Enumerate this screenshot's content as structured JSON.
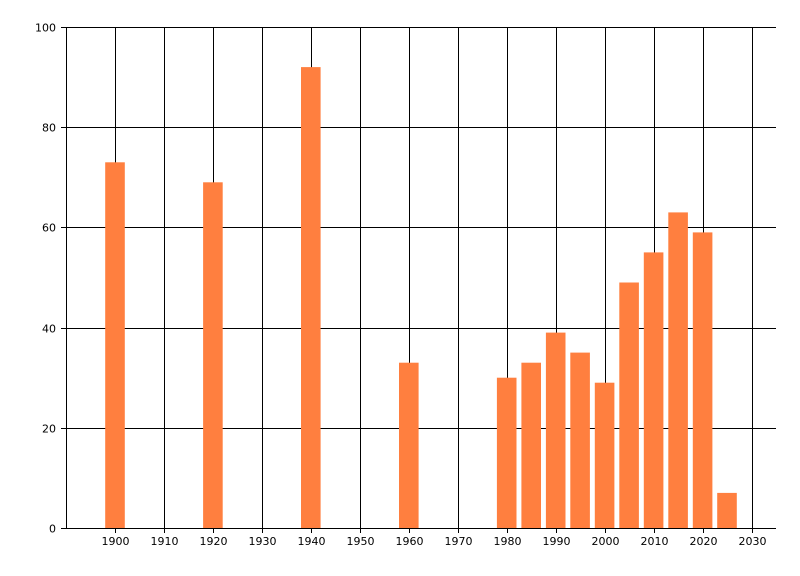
{
  "chart_data": {
    "type": "bar",
    "x": [
      1900,
      1920,
      1940,
      1960,
      1980,
      1985,
      1990,
      1995,
      2000,
      2005,
      2010,
      2015,
      2020,
      2025
    ],
    "values": [
      73,
      69,
      92,
      33,
      30,
      33,
      39,
      35,
      29,
      49,
      55,
      63,
      59,
      7
    ],
    "xlim": [
      1890,
      2035
    ],
    "ylim": [
      0,
      100
    ],
    "xticks": [
      1900,
      1910,
      1920,
      1930,
      1940,
      1950,
      1960,
      1970,
      1980,
      1990,
      2000,
      2010,
      2020,
      2030
    ],
    "yticks": [
      0,
      20,
      40,
      60,
      80,
      100
    ],
    "grid": true,
    "legend": "none",
    "bar_width_years": 4,
    "colors": {
      "bar": "#ff7f3f",
      "grid": "#000000",
      "axis": "#000000",
      "background": "#ffffff"
    }
  }
}
